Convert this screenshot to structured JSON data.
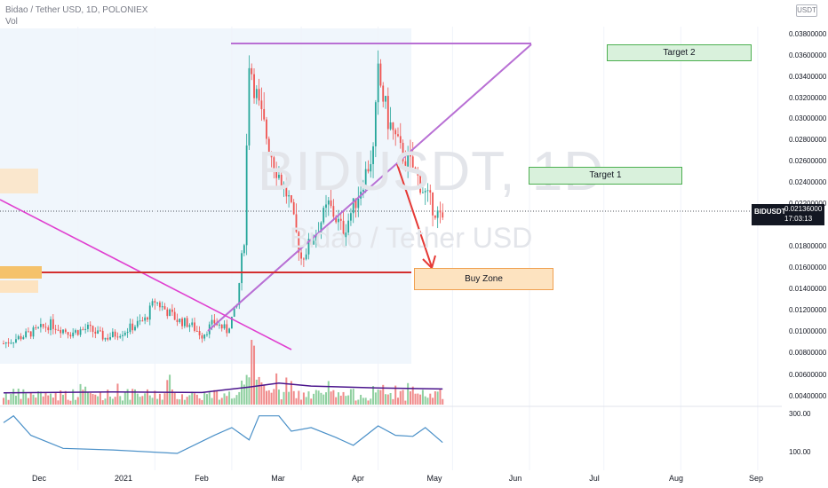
{
  "header": {
    "title": "Bidao / Tether USD, 1D, POLONIEX",
    "volume_label": "Vol"
  },
  "currency_button": "USDT",
  "watermark": {
    "ticker": "BIDUSDT, 1D",
    "name": "Bidao / Tether USD"
  },
  "price_tag": {
    "symbol": "BIDUSDT",
    "value": "0.02136000",
    "countdown": "17:03:13"
  },
  "annotations": {
    "target2": "Target 2",
    "target1": "Target 1",
    "buy_zone": "Buy Zone"
  },
  "colors": {
    "up": "#26a69a",
    "down": "#ef5350",
    "volume_up": "#8fd0a0",
    "volume_down": "#f08a8a",
    "vol_ma": "#4a148c",
    "triangle": "#b86fd4",
    "downtrend": "#e040d0",
    "support": "#d32f2f",
    "arrow": "#e53935",
    "target_fill": "#d9f1dc",
    "target_border": "#4caf50",
    "buyzone_fill": "#fde3c0",
    "buyzone_border": "#f0a050",
    "indicator": "#4a90c8"
  },
  "chart_data": {
    "type": "candlestick",
    "title": "Bidao / Tether USD, 1D, POLONIEX",
    "y_axis": {
      "scale": "linear",
      "range": [
        0.003,
        0.039
      ],
      "tick_labels": [
        "0.03800000",
        "0.03600000",
        "0.03400000",
        "0.03200000",
        "0.03000000",
        "0.02800000",
        "0.02600000",
        "0.02400000",
        "0.02200000",
        "0.02000000",
        "0.01800000",
        "0.01600000",
        "0.01400000",
        "0.01200000",
        "0.01000000",
        "0.00800000",
        "0.00600000",
        "0.00400000"
      ]
    },
    "x_axis": {
      "tick_labels": [
        "Dec",
        "2021",
        "Feb",
        "Mar",
        "Apr",
        "May",
        "Jun",
        "Jul",
        "Aug",
        "Sep"
      ],
      "range": [
        "2020-11-01",
        "2021-09-10"
      ]
    },
    "last_price": 0.02136,
    "price_series_close": [
      [
        "2020-11-01",
        0.01
      ],
      [
        "2020-11-10",
        0.0108
      ],
      [
        "2020-11-20",
        0.0118
      ],
      [
        "2020-11-28",
        0.011
      ],
      [
        "2020-12-05",
        0.0114
      ],
      [
        "2020-12-12",
        0.0105
      ],
      [
        "2020-12-20",
        0.0112
      ],
      [
        "2020-12-28",
        0.0122
      ],
      [
        "2021-01-01",
        0.014
      ],
      [
        "2021-01-05",
        0.0132
      ],
      [
        "2021-01-10",
        0.0122
      ],
      [
        "2021-01-15",
        0.0118
      ],
      [
        "2021-01-20",
        0.0108
      ],
      [
        "2021-01-25",
        0.012
      ],
      [
        "2021-01-30",
        0.0112
      ],
      [
        "2021-02-03",
        0.0135
      ],
      [
        "2021-02-06",
        0.02
      ],
      [
        "2021-02-08",
        0.0368
      ],
      [
        "2021-02-12",
        0.032
      ],
      [
        "2021-02-18",
        0.027
      ],
      [
        "2021-02-24",
        0.0235
      ],
      [
        "2021-03-01",
        0.018
      ],
      [
        "2021-03-06",
        0.02
      ],
      [
        "2021-03-12",
        0.023
      ],
      [
        "2021-03-18",
        0.0205
      ],
      [
        "2021-03-24",
        0.024
      ],
      [
        "2021-03-30",
        0.028
      ],
      [
        "2021-04-01",
        0.0352
      ],
      [
        "2021-04-05",
        0.031
      ],
      [
        "2021-04-10",
        0.028
      ],
      [
        "2021-04-15",
        0.0265
      ],
      [
        "2021-04-20",
        0.024
      ],
      [
        "2021-04-24",
        0.0225
      ],
      [
        "2021-04-27",
        0.0214
      ]
    ],
    "volume_panel": {
      "ma_line": [
        [
          "2020-11-01",
          0.6
        ],
        [
          "2020-12-15",
          0.65
        ],
        [
          "2021-01-20",
          0.62
        ],
        [
          "2021-02-08",
          0.9
        ],
        [
          "2021-02-20",
          1.1
        ],
        [
          "2021-03-05",
          0.95
        ],
        [
          "2021-04-01",
          0.85
        ],
        [
          "2021-04-27",
          0.8
        ]
      ]
    },
    "indicator_panel": {
      "tick_labels": [
        "300.00",
        "100.00"
      ],
      "series": [
        [
          "2020-11-01",
          230
        ],
        [
          "2020-11-05",
          280
        ],
        [
          "2020-11-12",
          160
        ],
        [
          "2020-11-25",
          110
        ],
        [
          "2020-12-15",
          105
        ],
        [
          "2021-01-10",
          95
        ],
        [
          "2021-01-25",
          160
        ],
        [
          "2021-02-01",
          200
        ],
        [
          "2021-02-08",
          140
        ],
        [
          "2021-02-12",
          280
        ],
        [
          "2021-02-20",
          280
        ],
        [
          "2021-02-25",
          180
        ],
        [
          "2021-03-05",
          200
        ],
        [
          "2021-03-15",
          150
        ],
        [
          "2021-03-22",
          120
        ],
        [
          "2021-04-01",
          210
        ],
        [
          "2021-04-08",
          160
        ],
        [
          "2021-04-15",
          155
        ],
        [
          "2021-04-20",
          200
        ],
        [
          "2021-04-27",
          130
        ]
      ]
    }
  }
}
